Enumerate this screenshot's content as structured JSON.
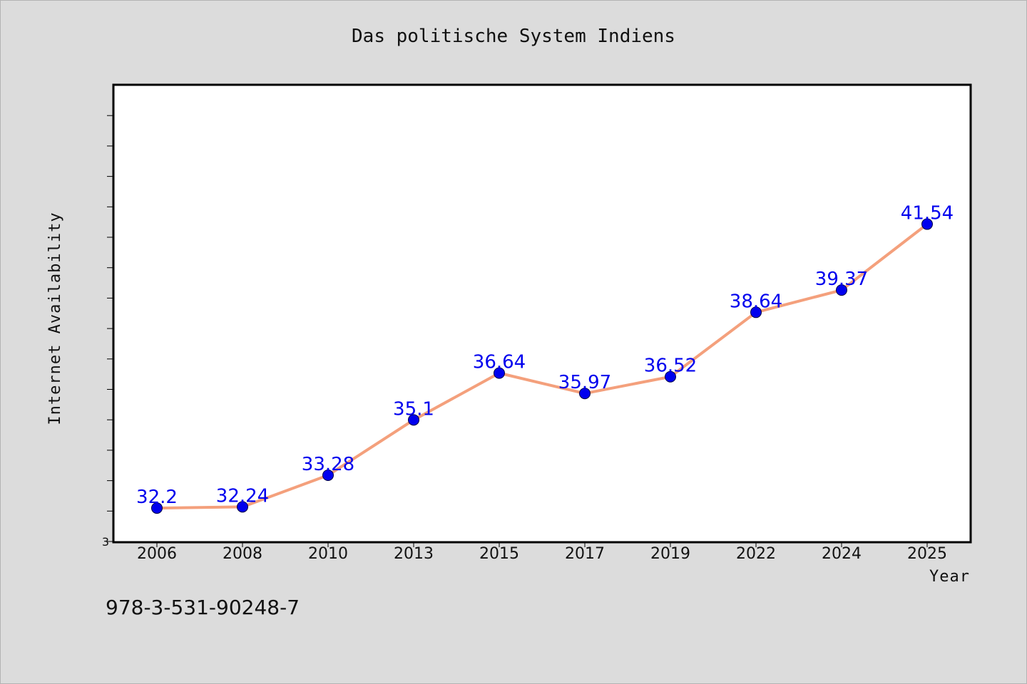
{
  "title": "Das politische System Indiens",
  "footer_text": "978-3-531-90248-7",
  "chart_data": {
    "type": "line",
    "title": "Das politische System Indiens",
    "xlabel": "Year",
    "ylabel": "Internet Availability",
    "categories": [
      "2006",
      "2008",
      "2010",
      "2013",
      "2015",
      "2017",
      "2019",
      "2022",
      "2024",
      "2025"
    ],
    "series": [
      {
        "name": "",
        "values": [
          32.2,
          32.24,
          33.28,
          35.1,
          36.64,
          35.97,
          36.52,
          38.64,
          39.37,
          41.54
        ]
      }
    ],
    "data_labels": [
      "32.2",
      "32.24",
      "33.28",
      "35.1",
      "36.64",
      "35.97",
      "36.52",
      "38.64",
      "39.37",
      "41.54"
    ],
    "y_tick_labels": [
      "3"
    ],
    "ylim": [
      31.1,
      46.1
    ],
    "grid": false,
    "legend": "none",
    "colors": {
      "line": "#f4a07c",
      "marker": "#0000ee",
      "label": "#0000ee"
    }
  }
}
